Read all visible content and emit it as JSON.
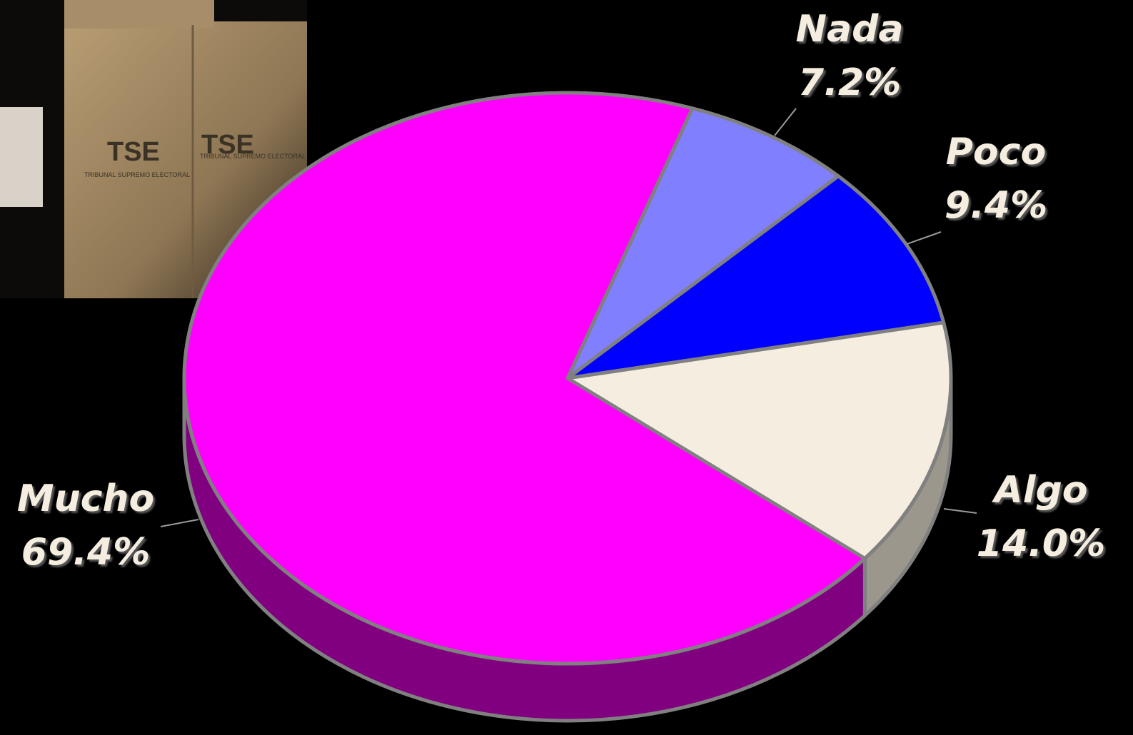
{
  "chart_data": {
    "type": "pie",
    "categories": [
      "Nada",
      "Poco",
      "Algo",
      "Mucho"
    ],
    "values": [
      7.2,
      9.4,
      14.0,
      69.4
    ],
    "value_labels": [
      "7.2%",
      "9.4%",
      "14.0%",
      "69.4%"
    ],
    "colors": [
      "#8080ff",
      "#0000ff",
      "#f5eee0",
      "#ff00ff"
    ],
    "side_colors": [
      "#5a5ab4",
      "#0000a0",
      "#9c978c",
      "#800080"
    ],
    "annotations": [
      "TSE",
      "TSE",
      "TRIBUNAL SUPREMO ELECTORAL",
      "TRIBUNAL SUPREMO ELECTORAL"
    ]
  }
}
